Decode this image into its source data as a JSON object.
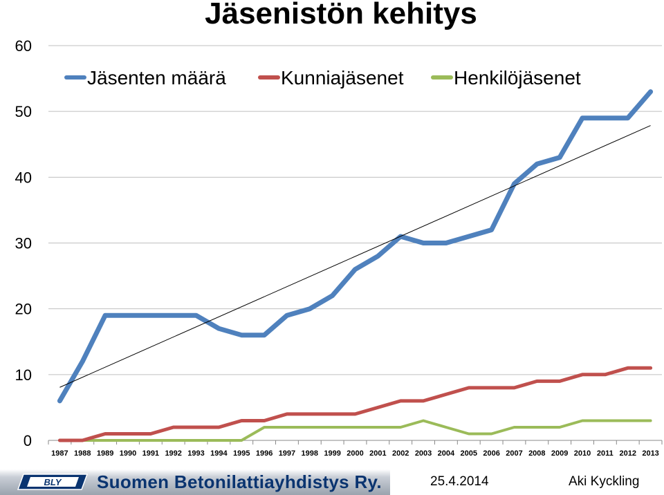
{
  "slide": {
    "title": "Jäsenistön kehitys",
    "org_name": "Suomen Betonilattiayhdistys Ry.",
    "logo_text": "BLY",
    "date": "25.4.2014",
    "author": "Aki Kyckling"
  },
  "chart_data": {
    "type": "line",
    "title": "Jäsenistön kehitys",
    "x": [
      1987,
      1988,
      1989,
      1990,
      1991,
      1992,
      1993,
      1994,
      1995,
      1996,
      1997,
      1998,
      1999,
      2000,
      2001,
      2002,
      2003,
      2004,
      2005,
      2006,
      2007,
      2008,
      2009,
      2010,
      2011,
      2012,
      2013
    ],
    "ylim": [
      0,
      60
    ],
    "yticks": [
      0,
      10,
      20,
      30,
      40,
      50,
      60
    ],
    "grid": "horizontal",
    "legend": "top-left",
    "series": [
      {
        "name": "Jäsenten määrä",
        "color": "#4f81bd",
        "values": [
          6,
          12,
          19,
          19,
          19,
          19,
          19,
          17,
          16,
          16,
          19,
          20,
          22,
          26,
          28,
          31,
          30,
          30,
          31,
          32,
          39,
          42,
          43,
          49,
          49,
          49,
          53
        ]
      },
      {
        "name": "Kunniajäsenet",
        "color": "#c0504d",
        "values": [
          0,
          0,
          1,
          1,
          1,
          2,
          2,
          2,
          3,
          3,
          4,
          4,
          4,
          4,
          5,
          6,
          6,
          7,
          8,
          8,
          8,
          9,
          9,
          10,
          10,
          11,
          11
        ]
      },
      {
        "name": "Henkilöjäsenet",
        "color": "#9bbb59",
        "values": [
          0,
          0,
          0,
          0,
          0,
          0,
          0,
          0,
          0,
          2,
          2,
          2,
          2,
          2,
          2,
          2,
          3,
          2,
          1,
          1,
          2,
          2,
          2,
          3,
          3,
          3,
          3
        ]
      }
    ],
    "trendline": {
      "series": "Jäsenten määrä",
      "type": "linear",
      "color": "#000000"
    }
  }
}
